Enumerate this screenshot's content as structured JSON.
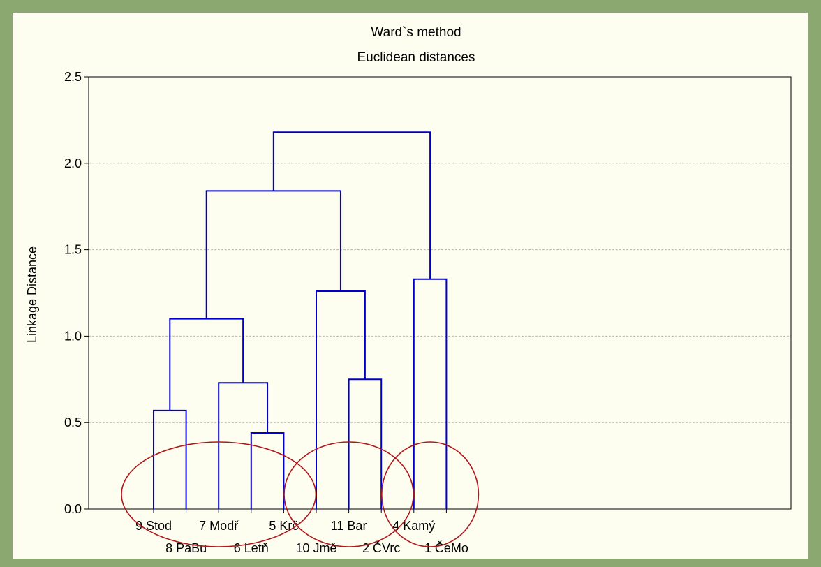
{
  "chart_data": {
    "type": "dendrogram",
    "title": "Ward`s method",
    "subtitle": "Euclidean distances",
    "ylabel": "Linkage Distance",
    "ylim": [
      0,
      2.5
    ],
    "yticks": [
      "0.0",
      "0.5",
      "1.0",
      "1.5",
      "2.0",
      "2.5"
    ],
    "grid": true,
    "leaves": [
      "9 Stod",
      "8 PaBu",
      "7 Modř",
      "6 Letň",
      "5 Krč",
      "10 Jmě",
      "11 Bar",
      "2 ČVrc",
      "4 Kamý",
      "1 ČeMo"
    ],
    "merges": [
      {
        "left": "9 Stod",
        "right": "8 PaBu",
        "height": 0.57
      },
      {
        "left": "6 Letň",
        "right": "5 Krč",
        "height": 0.44
      },
      {
        "left": "7 Modř",
        "right": "6 Letň + 5 Krč",
        "height": 0.73
      },
      {
        "left": "9 Stod + 8 PaBu",
        "right": "7 Modř + 6 Letň + 5 Krč",
        "height": 1.1
      },
      {
        "left": "11 Bar",
        "right": "2 ČVrc",
        "height": 0.75
      },
      {
        "left": "10 Jmě",
        "right": "11 Bar + 2 ČVrc",
        "height": 1.26
      },
      {
        "left": "cluster 1 (5 leaves)",
        "right": "cluster 2 (3 leaves)",
        "height": 1.84
      },
      {
        "left": "4 Kamý",
        "right": "1 ČeMo",
        "height": 1.33
      },
      {
        "left": "clusters 1+2",
        "right": "cluster 3",
        "height": 2.18
      }
    ],
    "highlighted_groups": [
      [
        "9 Stod",
        "8 PaBu",
        "7 Modř",
        "6 Letň",
        "5 Krč"
      ],
      [
        "10 Jmě",
        "11 Bar",
        "2 ČVrc"
      ],
      [
        "4 Kamý",
        "1 ČeMo"
      ]
    ],
    "colors": {
      "tree": "#0000cc",
      "ellipse": "#b0161a",
      "grid": "#b8b8b8",
      "frame": "#8aa870",
      "plot_bg": "#fdfdf0"
    }
  }
}
